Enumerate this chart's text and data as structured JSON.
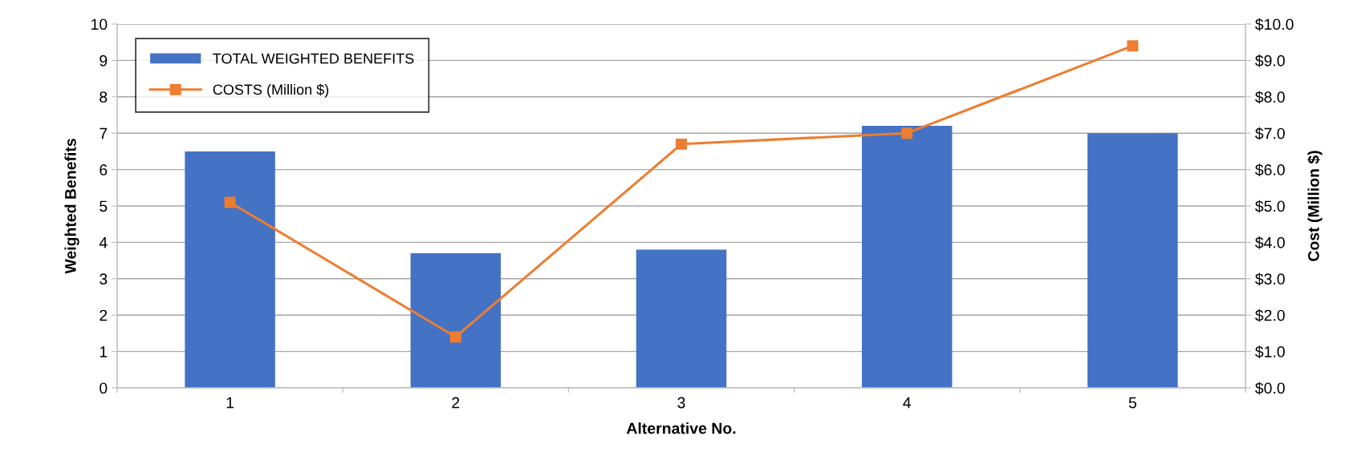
{
  "chart_data": {
    "type": "bar",
    "xlabel": "Alternative No.",
    "ylabel": "Weighted Benefits",
    "y2label": "Cost (Million $)",
    "categories": [
      "1",
      "2",
      "3",
      "4",
      "5"
    ],
    "series": [
      {
        "name": "TOTAL WEIGHTED BENEFITS",
        "color": "#4472c4",
        "values": [
          6.5,
          3.7,
          3.8,
          7.2,
          7.0
        ]
      },
      {
        "name": "COSTS (Million $)",
        "type": "line",
        "axis": "y2",
        "color": "#ed7d31",
        "marker": "square",
        "line_style": "solid",
        "values": [
          5.1,
          1.4,
          6.7,
          7.0,
          9.4
        ]
      }
    ],
    "ylim": [
      0,
      10
    ],
    "yticks": [
      0,
      1,
      2,
      3,
      4,
      5,
      6,
      7,
      8,
      9,
      10
    ],
    "y2lim": [
      0,
      10
    ],
    "y2ticks": [
      {
        "value": 0,
        "label": "$0.0"
      },
      {
        "value": 1,
        "label": "$1.0"
      },
      {
        "value": 2,
        "label": "$2.0"
      },
      {
        "value": 3,
        "label": "$3.0"
      },
      {
        "value": 4,
        "label": "$4.0"
      },
      {
        "value": 5,
        "label": "$5.0"
      },
      {
        "value": 6,
        "label": "$6.0"
      },
      {
        "value": 7,
        "label": "$7.0"
      },
      {
        "value": 8,
        "label": "$8.0"
      },
      {
        "value": 9,
        "label": "$9.0"
      },
      {
        "value": 10,
        "label": "$10.0"
      }
    ],
    "grid": "y",
    "legend": "top left"
  }
}
